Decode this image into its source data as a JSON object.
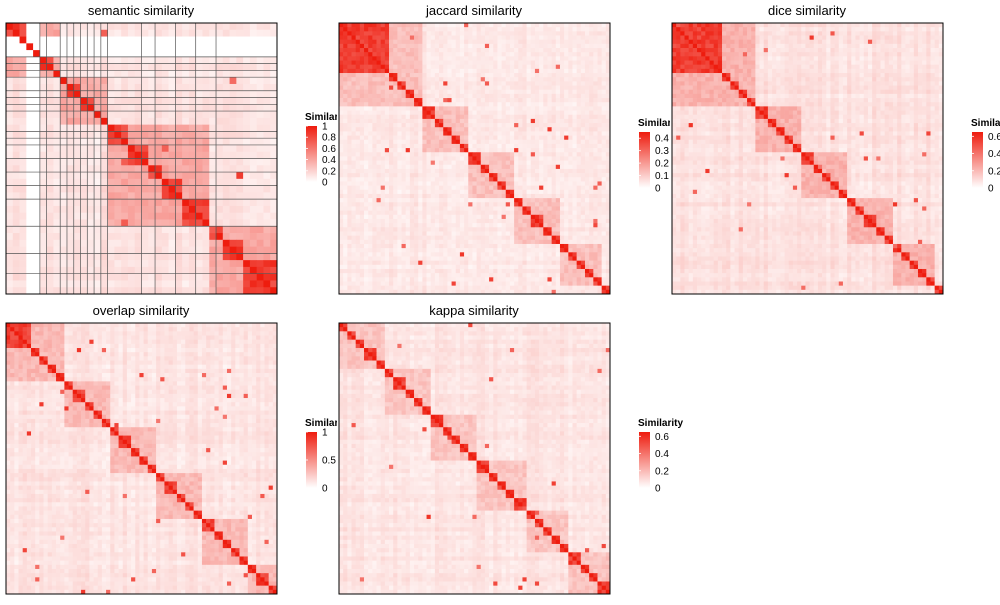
{
  "colors": {
    "low": "#ffffff",
    "high": "#ee1c0e",
    "border": "#000000",
    "grid": "#555555"
  },
  "chart_data": [
    {
      "type": "heatmap",
      "title": "semantic similarity",
      "legend": {
        "title": "Similarity",
        "ticks": [
          "1",
          "0.8",
          "0.6",
          "0.4",
          "0.2",
          "0"
        ],
        "max": 1
      },
      "clusters": [
        3,
        2,
        2,
        2,
        2,
        2,
        2,
        3,
        2,
        2,
        4,
        4,
        3,
        4,
        6,
        4,
        4,
        8
      ],
      "bg_level": 0.13,
      "block_level": 0.32,
      "excluded_rows": [
        2,
        3,
        4
      ],
      "excluded_cols": [
        3,
        4
      ],
      "grid_rows": [
        5,
        6,
        7,
        8,
        10,
        11,
        12,
        13,
        16,
        17,
        18,
        20,
        22,
        24,
        26,
        30,
        34,
        37
      ],
      "grid_cols": [
        5,
        6,
        8,
        9,
        10,
        11,
        12,
        13,
        14,
        15,
        20,
        22,
        25,
        28,
        31
      ],
      "n": 40
    },
    {
      "type": "heatmap",
      "title": "jaccard similarity",
      "legend": {
        "title": "Similarity",
        "ticks": [
          "0.4",
          "0.3",
          "0.2",
          "0.1",
          "0"
        ],
        "max": 0.45
      },
      "clusters": [
        12,
        3,
        2,
        2,
        2,
        3,
        2,
        3,
        2,
        2,
        3,
        2,
        2,
        3,
        2,
        2,
        2,
        3,
        2,
        3,
        2,
        2,
        2,
        2,
        2,
        3
      ],
      "bg_level": 0.1,
      "block_level": 0.22,
      "n": 65
    },
    {
      "type": "heatmap",
      "title": "dice similarity",
      "legend": {
        "title": "Similarity",
        "ticks": [
          "0.6",
          "0.4",
          "0.2",
          "0"
        ],
        "max": 0.65
      },
      "clusters": [
        12,
        3,
        2,
        2,
        2,
        3,
        2,
        3,
        2,
        2,
        3,
        2,
        2,
        3,
        2,
        2,
        2,
        3,
        2,
        3,
        2,
        2,
        2,
        2,
        2,
        3
      ],
      "bg_level": 0.14,
      "block_level": 0.28,
      "n": 65
    },
    {
      "type": "heatmap",
      "title": "overlap similarity",
      "legend": {
        "title": "Similarity",
        "ticks": [
          "1",
          "0.5",
          "0"
        ],
        "max": 1
      },
      "clusters": [
        5,
        2,
        2,
        2,
        2,
        2,
        3,
        2,
        2,
        2,
        2,
        3,
        2,
        2,
        2,
        2,
        3,
        2,
        2,
        2,
        3,
        2,
        2,
        2,
        2,
        2,
        3,
        2
      ],
      "bg_level": 0.12,
      "block_level": 0.25,
      "n": 65
    },
    {
      "type": "heatmap",
      "title": "kappa similarity",
      "legend": {
        "title": "Similarity",
        "ticks": [
          "0.6",
          "0.4",
          "0.2",
          "0"
        ],
        "max": 0.65
      },
      "clusters": [
        2,
        2,
        2,
        3,
        2,
        2,
        3,
        2,
        2,
        2,
        3,
        2,
        2,
        2,
        2,
        3,
        2,
        2,
        2,
        3,
        2,
        2,
        2,
        2,
        2,
        3,
        2,
        2,
        3
      ],
      "bg_level": 0.12,
      "block_level": 0.2,
      "n": 65
    }
  ]
}
